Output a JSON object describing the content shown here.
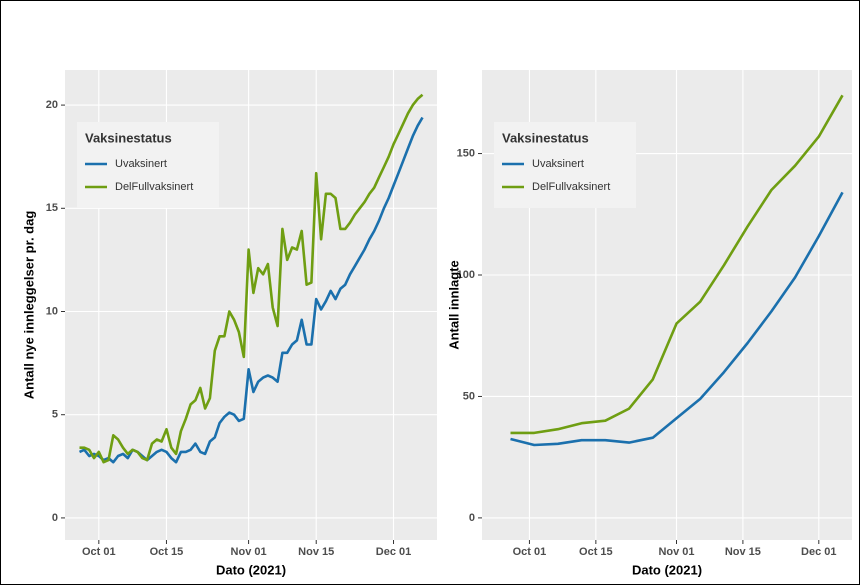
{
  "chart_data": [
    {
      "type": "line",
      "x": [
        "2021-09-27",
        "2021-09-28",
        "2021-09-29",
        "2021-09-30",
        "2021-10-01",
        "2021-10-02",
        "2021-10-03",
        "2021-10-04",
        "2021-10-05",
        "2021-10-06",
        "2021-10-07",
        "2021-10-08",
        "2021-10-09",
        "2021-10-10",
        "2021-10-11",
        "2021-10-12",
        "2021-10-13",
        "2021-10-14",
        "2021-10-15",
        "2021-10-16",
        "2021-10-17",
        "2021-10-18",
        "2021-10-19",
        "2021-10-20",
        "2021-10-21",
        "2021-10-22",
        "2021-10-23",
        "2021-10-24",
        "2021-10-25",
        "2021-10-26",
        "2021-10-27",
        "2021-10-28",
        "2021-10-29",
        "2021-10-30",
        "2021-10-31",
        "2021-11-01",
        "2021-11-02",
        "2021-11-03",
        "2021-11-04",
        "2021-11-05",
        "2021-11-06",
        "2021-11-07",
        "2021-11-08",
        "2021-11-09",
        "2021-11-10",
        "2021-11-11",
        "2021-11-12",
        "2021-11-13",
        "2021-11-14",
        "2021-11-15",
        "2021-11-16",
        "2021-11-17",
        "2021-11-18",
        "2021-11-19",
        "2021-11-20",
        "2021-11-21",
        "2021-11-22",
        "2021-11-23",
        "2021-11-24",
        "2021-11-25",
        "2021-11-26",
        "2021-11-27",
        "2021-11-28",
        "2021-11-29",
        "2021-11-30",
        "2021-12-01",
        "2021-12-02",
        "2021-12-03",
        "2021-12-04",
        "2021-12-05",
        "2021-12-06",
        "2021-12-07"
      ],
      "series": [
        {
          "name": "Uvaksinert",
          "color": "#1b70ad",
          "values": [
            3.2,
            3.3,
            3.0,
            3.1,
            3.0,
            2.8,
            2.9,
            2.7,
            3.0,
            3.1,
            2.9,
            3.3,
            3.2,
            3.0,
            2.8,
            3.0,
            3.2,
            3.3,
            3.2,
            2.9,
            2.7,
            3.2,
            3.2,
            3.3,
            3.6,
            3.2,
            3.1,
            3.7,
            3.9,
            4.6,
            4.9,
            5.1,
            5.0,
            4.7,
            4.8,
            7.2,
            6.1,
            6.6,
            6.8,
            6.9,
            6.8,
            6.6,
            8.0,
            8.0,
            8.4,
            8.6,
            9.6,
            8.4,
            8.4,
            10.6,
            10.1,
            10.5,
            11.0,
            10.6,
            11.1,
            11.3,
            11.8,
            12.2,
            12.6,
            13.0,
            13.5,
            13.9,
            14.4,
            15.0,
            15.5,
            16.1,
            16.7,
            17.3,
            17.9,
            18.5,
            19.0,
            19.4
          ]
        },
        {
          "name": "DelFullvaksinert",
          "color": "#6f9e12",
          "values": [
            3.4,
            3.4,
            3.3,
            2.9,
            3.2,
            2.7,
            2.8,
            4.0,
            3.8,
            3.4,
            3.1,
            3.3,
            3.2,
            2.9,
            2.8,
            3.6,
            3.8,
            3.7,
            4.3,
            3.4,
            3.1,
            4.2,
            4.8,
            5.5,
            5.7,
            6.3,
            5.3,
            5.8,
            8.1,
            8.8,
            8.8,
            10.0,
            9.6,
            9.0,
            7.8,
            13.0,
            10.9,
            12.1,
            11.8,
            12.3,
            10.2,
            9.3,
            14.0,
            12.5,
            13.1,
            13.0,
            13.9,
            11.3,
            11.4,
            16.7,
            13.5,
            15.7,
            15.7,
            15.5,
            14.0,
            14.0,
            14.3,
            14.7,
            15.0,
            15.3,
            15.7,
            16.0,
            16.5,
            17.0,
            17.5,
            18.1,
            18.6,
            19.1,
            19.6,
            20.0,
            20.3,
            20.5
          ]
        }
      ],
      "xlim": [
        "2021-09-24",
        "2021-12-10"
      ],
      "xticks": [
        {
          "value": "2021-10-01",
          "label": "Oct 01"
        },
        {
          "value": "2021-10-15",
          "label": "Oct 15"
        },
        {
          "value": "2021-11-01",
          "label": "Nov 01"
        },
        {
          "value": "2021-11-15",
          "label": "Nov 15"
        },
        {
          "value": "2021-12-01",
          "label": "Dec 01"
        }
      ],
      "ylim": [
        -1.07,
        21.7
      ],
      "yticks": [
        0,
        5,
        10,
        15,
        20
      ],
      "xlabel": "Dato (2021)",
      "ylabel": "Antall nye innleggelser pr. dag",
      "legend_title": "Vaksinestatus",
      "legend_position": "top-left",
      "grid": true
    },
    {
      "type": "line",
      "x": [
        "2021-09-27",
        "2021-10-02",
        "2021-10-07",
        "2021-10-12",
        "2021-10-17",
        "2021-10-22",
        "2021-10-27",
        "2021-11-01",
        "2021-11-06",
        "2021-11-11",
        "2021-11-16",
        "2021-11-21",
        "2021-11-26",
        "2021-12-01",
        "2021-12-06"
      ],
      "series": [
        {
          "name": "Uvaksinert",
          "color": "#1b70ad",
          "values": [
            32.5,
            30,
            30.5,
            32,
            32,
            31,
            33,
            41,
            49,
            60,
            72,
            85,
            99,
            116,
            134
          ]
        },
        {
          "name": "DelFullvaksinert",
          "color": "#6f9e12",
          "values": [
            35,
            35,
            36.5,
            39,
            40,
            45,
            57,
            80,
            89,
            104,
            120,
            135,
            145,
            157,
            174
          ]
        }
      ],
      "xlim": [
        "2021-09-21",
        "2021-12-08"
      ],
      "xticks": [
        {
          "value": "2021-10-01",
          "label": "Oct 01"
        },
        {
          "value": "2021-10-15",
          "label": "Oct 15"
        },
        {
          "value": "2021-11-01",
          "label": "Nov 01"
        },
        {
          "value": "2021-11-15",
          "label": "Nov 15"
        },
        {
          "value": "2021-12-01",
          "label": "Dec 01"
        }
      ],
      "ylim": [
        -9.1,
        184.4
      ],
      "yticks": [
        0,
        50,
        100,
        150
      ],
      "xlabel": "Dato (2021)",
      "ylabel": "Antall innlagte",
      "legend_title": "Vaksinestatus",
      "legend_position": "top-left",
      "grid": true
    }
  ]
}
